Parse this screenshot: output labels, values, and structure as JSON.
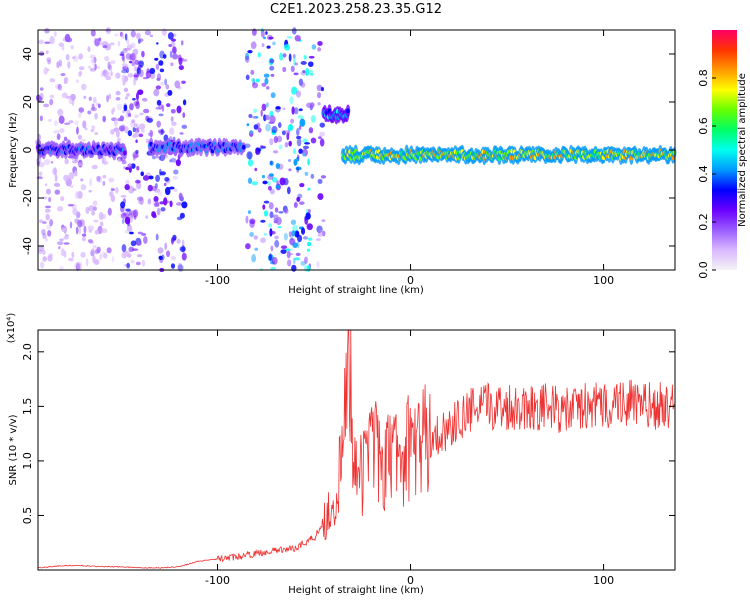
{
  "title": "C2E1.2023.258.23.35.G12",
  "colors": {
    "snr_line": "#ee3333",
    "colormap": [
      "#f4f4f4",
      "#d9b8ff",
      "#9a5cff",
      "#6a00ff",
      "#0000ff",
      "#0099ff",
      "#00ffee",
      "#00ff66",
      "#66ff00",
      "#ffff00",
      "#ff9900",
      "#ff3300",
      "#ff0066"
    ]
  },
  "chart_data": [
    {
      "type": "heatmap",
      "xlabel": "Height of straight line (km)",
      "ylabel": "Frequency (Hz)",
      "xlim": [
        -193,
        137
      ],
      "ylim": [
        -50,
        50
      ],
      "xticks": [
        {
          "value": -100,
          "label": "-100"
        },
        {
          "value": 0,
          "label": "0"
        },
        {
          "value": 100,
          "label": "100"
        }
      ],
      "yticks": [
        {
          "value": -40,
          "label": "-40"
        },
        {
          "value": -20,
          "label": "-20"
        },
        {
          "value": 0,
          "label": "0"
        },
        {
          "value": 20,
          "label": "20"
        },
        {
          "value": 40,
          "label": "40"
        }
      ],
      "colorbar": {
        "label": "Normalized spectral amplitude",
        "range": [
          0,
          1
        ],
        "ticks": [
          {
            "value": 0.0,
            "label": "0.0"
          },
          {
            "value": 0.2,
            "label": "0.2"
          },
          {
            "value": 0.4,
            "label": "0.4"
          },
          {
            "value": 0.6,
            "label": "0.6"
          },
          {
            "value": 0.8,
            "label": "0.8"
          }
        ]
      },
      "noise_bands": [
        {
          "x_range": [
            -193,
            -140
          ],
          "amplitude": 0.15
        },
        {
          "x_range": [
            -150,
            -117
          ],
          "amplitude": 0.3
        },
        {
          "x_range": [
            -85,
            -50
          ],
          "amplitude": 0.45
        },
        {
          "x_range": [
            -48,
            -45
          ],
          "amplitude": 0.3
        }
      ],
      "signal_segments": [
        {
          "x_range": [
            -193,
            -148
          ],
          "frequency": 0,
          "amplitude": 0.4
        },
        {
          "x_range": [
            -135,
            -86
          ],
          "frequency": 1,
          "amplitude": 0.45
        },
        {
          "x_range": [
            -45,
            -32
          ],
          "frequency": 15,
          "amplitude": 0.5
        },
        {
          "x_range": [
            -35,
            137
          ],
          "frequency": -2,
          "amplitude": 0.85
        }
      ]
    },
    {
      "type": "line",
      "xlabel": "Height of straight line (km)",
      "ylabel": "SNR (10 * v/v)",
      "y_multiplier": "(x10⁴)",
      "xlim": [
        -193,
        137
      ],
      "ylim": [
        0,
        2.2
      ],
      "xticks": [
        {
          "value": -100,
          "label": "-100"
        },
        {
          "value": 0,
          "label": "0"
        },
        {
          "value": 100,
          "label": "100"
        }
      ],
      "yticks": [
        {
          "value": 0.5,
          "label": "0.5"
        },
        {
          "value": 1.0,
          "label": "1.0"
        },
        {
          "value": 1.5,
          "label": "1.5"
        },
        {
          "value": 2.0,
          "label": "2.0"
        }
      ],
      "series": [
        {
          "x": [
            -193,
            -180,
            -170,
            -160,
            -150,
            -140,
            -130,
            -120,
            -110,
            -100,
            -90,
            -80,
            -70,
            -60,
            -50,
            -45,
            -40,
            -35,
            -32,
            -30,
            -25,
            -20,
            -15,
            -10,
            -5,
            0,
            10,
            20,
            30,
            40,
            50,
            60,
            70,
            80,
            90,
            100,
            110,
            120,
            130,
            137
          ],
          "y": [
            0.02,
            0.04,
            0.04,
            0.03,
            0.03,
            0.02,
            0.02,
            0.03,
            0.08,
            0.1,
            0.12,
            0.15,
            0.18,
            0.2,
            0.3,
            0.45,
            0.6,
            1.0,
            2.2,
            1.2,
            0.8,
            1.5,
            0.8,
            1.1,
            1.0,
            1.15,
            1.2,
            1.3,
            1.45,
            1.5,
            1.5,
            1.5,
            1.5,
            1.45,
            1.5,
            1.5,
            1.55,
            1.5,
            1.5,
            1.5
          ]
        }
      ]
    }
  ]
}
